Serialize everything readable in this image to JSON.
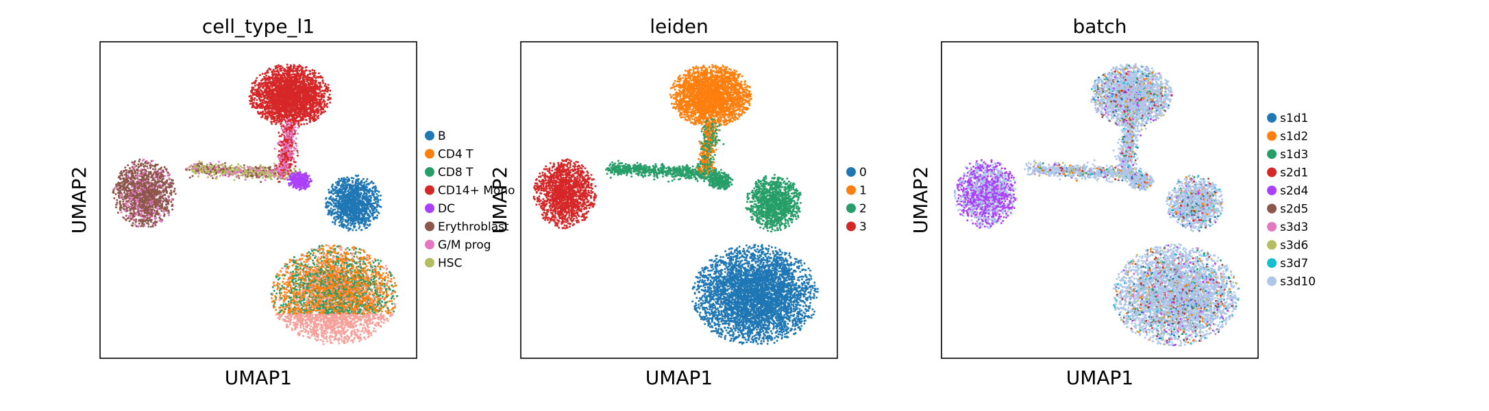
{
  "chart_data": [
    {
      "type": "scatter",
      "title": "cell_type_l1",
      "xlabel": "UMAP1",
      "ylabel": "UMAP2",
      "grid": false,
      "ticks": false,
      "legend": "right",
      "legend_entries": [
        {
          "name": "B",
          "color": "#1f77b4"
        },
        {
          "name": "CD4 T",
          "color": "#ff7f0e"
        },
        {
          "name": "CD8 T",
          "color": "#279e68"
        },
        {
          "name": "CD14+ Mono",
          "color": "#d62728"
        },
        {
          "name": "DC",
          "color": "#aa40fc"
        },
        {
          "name": "Erythroblast",
          "color": "#8c564b"
        },
        {
          "name": "G/M prog",
          "color": "#e377c2"
        },
        {
          "name": "HSC",
          "color": "#b5bd61"
        }
      ]
    },
    {
      "type": "scatter",
      "title": "leiden",
      "xlabel": "UMAP1",
      "ylabel": "UMAP2",
      "grid": false,
      "ticks": false,
      "legend": "right",
      "legend_entries": [
        {
          "name": "0",
          "color": "#1f77b4"
        },
        {
          "name": "1",
          "color": "#ff7f0e"
        },
        {
          "name": "2",
          "color": "#279e68"
        },
        {
          "name": "3",
          "color": "#d62728"
        }
      ]
    },
    {
      "type": "scatter",
      "title": "batch",
      "xlabel": "UMAP1",
      "ylabel": "UMAP2",
      "grid": false,
      "ticks": false,
      "legend": "right",
      "legend_entries": [
        {
          "name": "s1d1",
          "color": "#1f77b4"
        },
        {
          "name": "s1d2",
          "color": "#ff7f0e"
        },
        {
          "name": "s1d3",
          "color": "#279e68"
        },
        {
          "name": "s2d1",
          "color": "#d62728"
        },
        {
          "name": "s2d4",
          "color": "#aa40fc"
        },
        {
          "name": "s2d5",
          "color": "#8c564b"
        },
        {
          "name": "s3d3",
          "color": "#e377c2"
        },
        {
          "name": "s3d6",
          "color": "#b5bd61"
        },
        {
          "name": "s3d7",
          "color": "#17becf"
        },
        {
          "name": "s3d10",
          "color": "#aec7e8"
        }
      ]
    }
  ]
}
